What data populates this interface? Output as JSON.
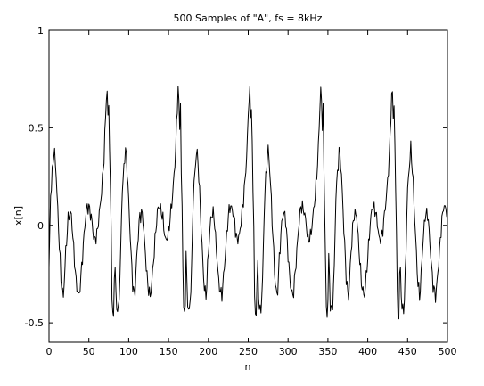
{
  "chart_data": {
    "type": "line",
    "title": "500 Samples of \"A\", fs = 8kHz",
    "xlabel": "n",
    "ylabel": "x[n]",
    "xlim": [
      0,
      500
    ],
    "ylim": [
      -0.6,
      1
    ],
    "x_ticks": [
      0,
      50,
      100,
      150,
      200,
      250,
      300,
      350,
      400,
      450,
      500
    ],
    "x_tick_labels": [
      "0",
      "50",
      "100",
      "150",
      "200",
      "250",
      "300",
      "350",
      "400",
      "450",
      "500"
    ],
    "y_ticks": [
      -0.5,
      0,
      0.5,
      1
    ],
    "y_tick_labels": [
      "-0.5",
      "0",
      "0.5",
      "1"
    ],
    "grid": false,
    "legend": "none",
    "line_color": "#000000",
    "period_samples": 89.5,
    "waveform_period_profile": {
      "phase": [
        0,
        0.02,
        0.05,
        0.08,
        0.1,
        0.12,
        0.15,
        0.18,
        0.21,
        0.25,
        0.28,
        0.31,
        0.35,
        0.39,
        0.42,
        0.46,
        0.5,
        0.54,
        0.58,
        0.61,
        0.65,
        0.68,
        0.71,
        0.75,
        0.78,
        0.81,
        0.85,
        0.87,
        0.89,
        0.91,
        0.92,
        0.93,
        0.95,
        0.96,
        0.97,
        0.985,
        1.0
      ],
      "value": [
        -0.15,
        -0.4,
        -0.45,
        -0.2,
        0.15,
        0.25,
        0.4,
        0.25,
        0.0,
        -0.3,
        -0.37,
        -0.15,
        0.05,
        0.06,
        -0.1,
        -0.3,
        -0.37,
        -0.2,
        0.0,
        0.1,
        0.08,
        0.02,
        -0.08,
        -0.05,
        0.05,
        0.15,
        0.35,
        0.55,
        0.72,
        0.5,
        0.7,
        0.3,
        0.0,
        -0.35,
        -0.48,
        -0.45,
        -0.15
      ]
    }
  }
}
